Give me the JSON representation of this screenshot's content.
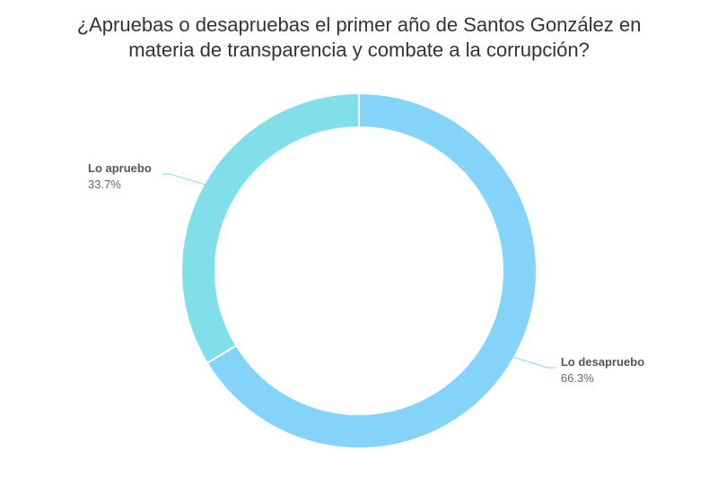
{
  "chart_data": {
    "type": "pie",
    "variant": "donut",
    "title_lines": [
      "¿Apruebas o desapruebas el primer año de Santos González en",
      "materia de transparencia y combate a la corrupción?"
    ],
    "slices": [
      {
        "label": "Lo desapruebo",
        "value": 66.3,
        "value_label": "66.3%",
        "color": "#84d4fa"
      },
      {
        "label": "Lo apruebo",
        "value": 33.7,
        "value_label": "33.7%",
        "color": "#80dfe9"
      }
    ],
    "legend": "none"
  }
}
